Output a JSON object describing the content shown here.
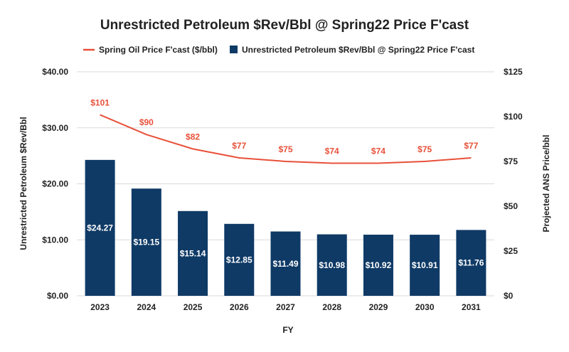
{
  "chart_data": {
    "type": "bar",
    "title": "Unrestricted Petroleum $Rev/Bbl @ Spring22 Price F'cast",
    "xlabel": "FY",
    "ylabel": "Unrestricted Petroleum $Rev/Bbl",
    "y2label": "Projected ANS Price/bbl",
    "categories": [
      "2023",
      "2024",
      "2025",
      "2026",
      "2027",
      "2028",
      "2029",
      "2030",
      "2031"
    ],
    "ylim": [
      0,
      40
    ],
    "y2lim": [
      0,
      125
    ],
    "yticks": [
      "$0.00",
      "$10.00",
      "$20.00",
      "$30.00",
      "$40.00"
    ],
    "y2ticks": [
      "$0",
      "$25",
      "$50",
      "$75",
      "$100",
      "$125"
    ],
    "legend_position": "top",
    "grid": true,
    "series": [
      {
        "name": "Unrestricted Petroleum $Rev/Bbl @ Spring22 Price F'cast",
        "type": "bar",
        "axis": "left",
        "color": "#0f3a66",
        "values": [
          24.27,
          19.15,
          15.14,
          12.85,
          11.49,
          10.98,
          10.92,
          10.91,
          11.76
        ],
        "labels": [
          "$24.27",
          "$19.15",
          "$15.14",
          "$12.85",
          "$11.49",
          "$10.98",
          "$10.92",
          "$10.91",
          "$11.76"
        ]
      },
      {
        "name": "Spring Oil Price F'cast ($/bbl)",
        "type": "line",
        "axis": "right",
        "color": "#e8503a",
        "values": [
          101,
          90,
          82,
          77,
          75,
          74,
          74,
          75,
          77
        ],
        "labels": [
          "$101",
          "$90",
          "$82",
          "$77",
          "$75",
          "$74",
          "$74",
          "$75",
          "$77"
        ]
      }
    ]
  }
}
